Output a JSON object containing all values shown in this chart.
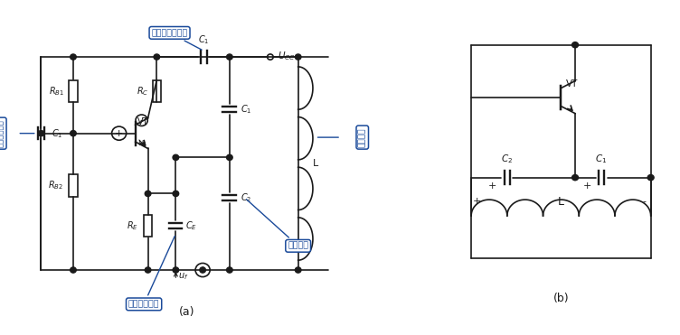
{
  "bg_color": "#ffffff",
  "line_color": "#1a1a1a",
  "blue_color": "#1a4a9a",
  "fig_width": 7.52,
  "fig_height": 3.71,
  "caption_a": "(a)",
  "caption_b": "(b)",
  "ann1": "集电极耦合电容",
  "ann2": "选频网络",
  "ann3": "射极旁路电容",
  "ann4": "反馈电容",
  "ann5": "基级耦合电容"
}
